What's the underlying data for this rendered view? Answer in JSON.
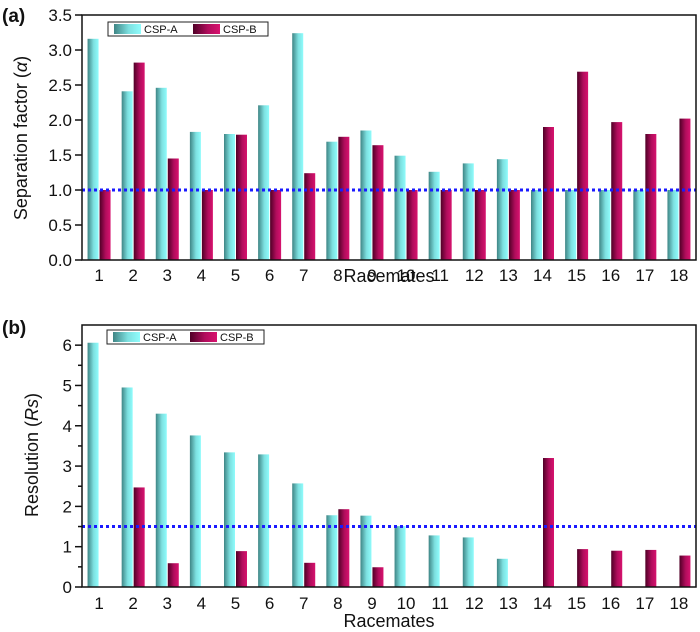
{
  "chart_data": [
    {
      "type": "bar",
      "panel_label": "(a)",
      "title": "",
      "xlabel": "Racemates",
      "ylabel_main": "Separation factor (",
      "ylabel_symbol": "α",
      "ylabel_end": ")",
      "ylim": [
        0,
        3.5
      ],
      "yticks": [
        0.0,
        0.5,
        1.0,
        1.5,
        2.0,
        2.5,
        3.0,
        3.5
      ],
      "ytick_labels": [
        "0.0",
        "0.5",
        "1.0",
        "1.5",
        "2.0",
        "2.5",
        "3.0",
        "3.5"
      ],
      "categories": [
        "1",
        "2",
        "3",
        "4",
        "5",
        "6",
        "7",
        "8",
        "9",
        "10",
        "11",
        "12",
        "13",
        "14",
        "15",
        "16",
        "17",
        "18"
      ],
      "series": [
        {
          "name": "CSP-A",
          "values": [
            3.16,
            2.41,
            2.46,
            1.83,
            1.8,
            2.21,
            3.24,
            1.69,
            1.85,
            1.49,
            1.26,
            1.38,
            1.44,
            1.0,
            1.0,
            1.0,
            1.0,
            1.0
          ]
        },
        {
          "name": "CSP-B",
          "values": [
            1.0,
            2.82,
            1.45,
            1.0,
            1.79,
            1.0,
            1.24,
            1.76,
            1.64,
            1.0,
            1.0,
            1.0,
            1.0,
            1.9,
            2.69,
            1.97,
            1.8,
            2.02
          ]
        }
      ],
      "reference_line": {
        "y": 1.0,
        "style": "dotted",
        "color": "#1a1aff"
      },
      "legend": {
        "placement": "top-left",
        "entries": [
          "CSP-A",
          "CSP-B"
        ]
      },
      "grid": false
    },
    {
      "type": "bar",
      "panel_label": "(b)",
      "title": "",
      "xlabel": "Racemates",
      "ylabel_main": "Resolution (",
      "ylabel_symbol": "Rs",
      "ylabel_end": ")",
      "ylim": [
        0,
        6.5
      ],
      "yticks": [
        0,
        1,
        2,
        3,
        4,
        5,
        6
      ],
      "ytick_labels": [
        "0",
        "1",
        "2",
        "3",
        "4",
        "5",
        "6"
      ],
      "minor_yticks": [
        0.5,
        1.5,
        2.5,
        3.5,
        4.5,
        5.5
      ],
      "categories": [
        "1",
        "2",
        "3",
        "4",
        "5",
        "6",
        "7",
        "8",
        "9",
        "10",
        "11",
        "12",
        "13",
        "14",
        "15",
        "16",
        "17",
        "18"
      ],
      "series": [
        {
          "name": "CSP-A",
          "values": [
            6.06,
            4.95,
            4.3,
            3.76,
            3.34,
            3.29,
            2.57,
            1.78,
            1.77,
            1.51,
            1.28,
            1.23,
            0.7,
            0,
            0,
            0,
            0,
            0
          ]
        },
        {
          "name": "CSP-B",
          "values": [
            0,
            2.47,
            0.59,
            0,
            0.89,
            0,
            0.6,
            1.93,
            0.49,
            0,
            0,
            0,
            0,
            3.2,
            0.94,
            0.9,
            0.92,
            0.78
          ]
        }
      ],
      "reference_line": {
        "y": 1.5,
        "style": "dotted",
        "color": "#1a1aff"
      },
      "legend": {
        "placement": "top-left",
        "entries": [
          "CSP-A",
          "CSP-B"
        ]
      },
      "grid": false
    }
  ],
  "colors": {
    "csp_a_dark": "#3f8585",
    "csp_a_light": "#8ffcfc",
    "csp_b_dark": "#4f0026",
    "csp_b_light": "#d8126e",
    "ref_line": "#1a1aff",
    "axis": "#111111"
  }
}
